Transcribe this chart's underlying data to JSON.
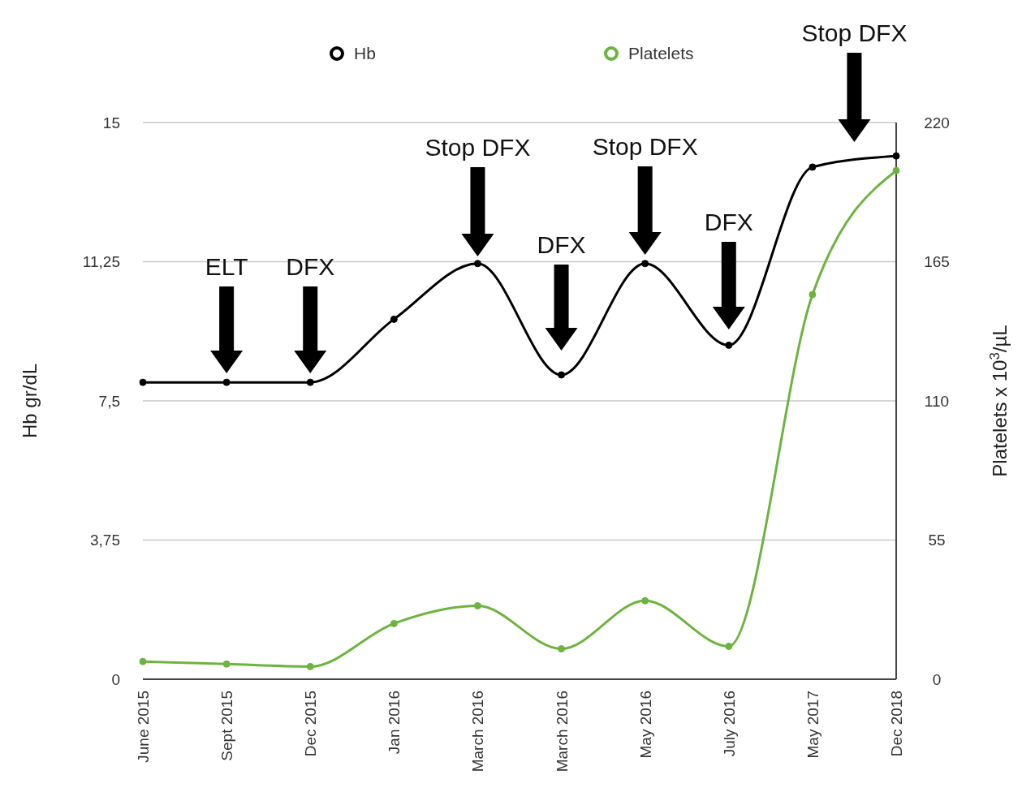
{
  "chart_data": {
    "type": "line",
    "categories": [
      "June 2015",
      "Sept 2015",
      "Dec 2015",
      "Jan 2016",
      "March 2016",
      "March 2016",
      "May 2016",
      "July 2016",
      "May 2017",
      "Dec 2018"
    ],
    "series": [
      {
        "name": "Hb",
        "color": "#000000",
        "values": [
          8.0,
          8.0,
          8.0,
          9.7,
          11.2,
          8.2,
          11.2,
          9.0,
          13.8,
          14.1
        ]
      },
      {
        "name": "Platelets",
        "color": "#6db33f",
        "axis": "y2",
        "values": [
          7,
          6,
          5,
          22,
          29,
          12,
          31,
          13,
          152,
          201
        ]
      }
    ],
    "ylabel": "Hb gr/dL",
    "y2label": "Platelets x 10$^{3}$/µL",
    "ylim": [
      0,
      15
    ],
    "yticks": [
      0,
      {
        "value": 3.75,
        "label": "3,75"
      },
      {
        "value": 7.5,
        "label": "7,5"
      },
      {
        "value": 11.25,
        "label": "11,25"
      },
      15
    ],
    "y2lim": [
      0,
      220
    ],
    "y2ticks": [
      0,
      55,
      110,
      165,
      220
    ],
    "annotations": [
      "ELT",
      "DFX",
      "Stop DFX",
      "DFX",
      "Stop DFX",
      "DFX",
      "Stop DFX"
    ],
    "grid": "y",
    "legend": "top",
    "marker": "circle",
    "line_style": "solid"
  }
}
